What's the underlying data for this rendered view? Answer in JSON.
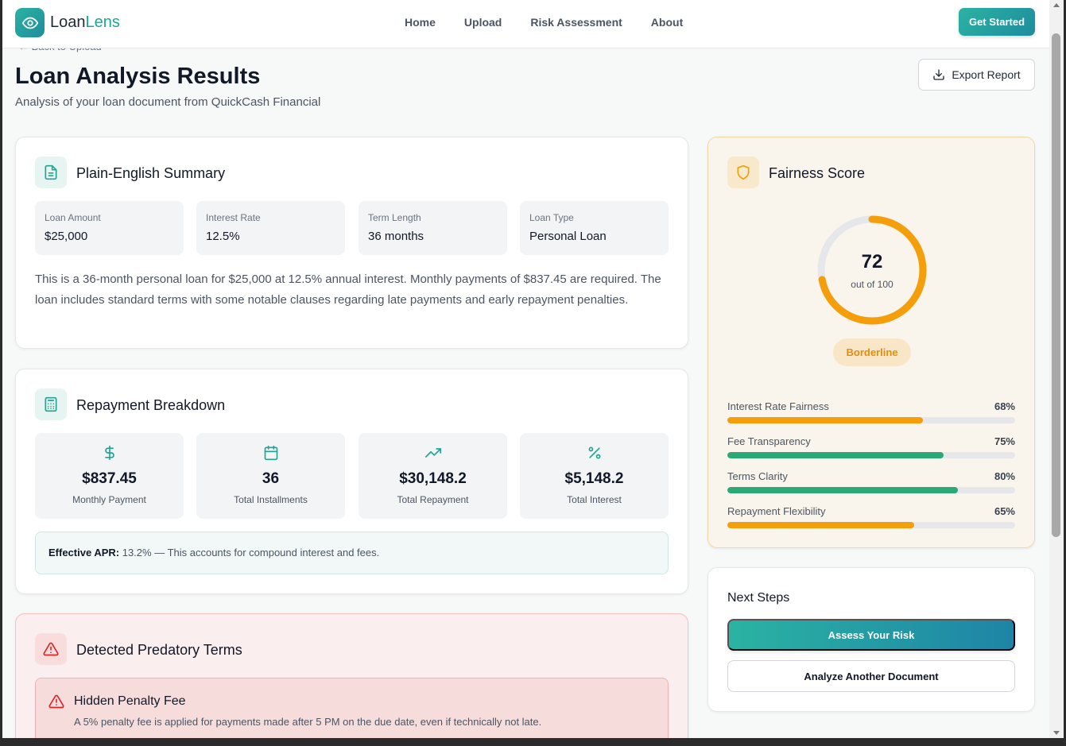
{
  "nav": {
    "logo_part1": "Loan",
    "logo_part2": "Lens",
    "links": [
      "Home",
      "Upload",
      "Risk Assessment",
      "About"
    ],
    "cta": "Get Started"
  },
  "page": {
    "back_link": "Back to Upload",
    "title": "Loan Analysis Results",
    "subtitle": "Analysis of your loan document from QuickCash Financial",
    "export_label": "Export Report"
  },
  "summary": {
    "title": "Plain-English Summary",
    "stats": [
      {
        "label": "Loan Amount",
        "value": "$25,000"
      },
      {
        "label": "Interest Rate",
        "value": "12.5%"
      },
      {
        "label": "Term Length",
        "value": "36 months"
      },
      {
        "label": "Loan Type",
        "value": "Personal Loan"
      }
    ],
    "text": "This is a 36-month personal loan for $25,000 at 12.5% annual interest. Monthly payments of $837.45 are required. The loan includes standard terms with some notable clauses regarding late payments and early repayment penalties."
  },
  "repayment": {
    "title": "Repayment Breakdown",
    "metrics": [
      {
        "value": "$837.45",
        "label": "Monthly Payment",
        "icon": "dollar-icon"
      },
      {
        "value": "36",
        "label": "Total Installments",
        "icon": "calendar-icon"
      },
      {
        "value": "$30,148.2",
        "label": "Total Repayment",
        "icon": "trending-up-icon"
      },
      {
        "value": "$5,148.2",
        "label": "Total Interest",
        "icon": "percent-icon"
      }
    ],
    "apr_label": "Effective APR:",
    "apr_text": " 13.2% — This accounts for compound interest and fees."
  },
  "predatory": {
    "title": "Detected Predatory Terms",
    "items": [
      {
        "title": "Hidden Penalty Fee",
        "description": "A 5% penalty fee is applied for payments made after 5 PM on the due date, even if technically not late."
      }
    ]
  },
  "fairness": {
    "title": "Fairness Score",
    "score": "72",
    "score_value": 72,
    "score_max": 100,
    "score_sub": "out of 100",
    "badge": "Borderline",
    "colors": {
      "warning": "#f59e0b",
      "good": "#2aa876",
      "track": "#e5e7eb"
    },
    "bars": [
      {
        "label": "Interest Rate Fairness",
        "pct": "68%",
        "value": 68,
        "color": "#f59e0b"
      },
      {
        "label": "Fee Transparency",
        "pct": "75%",
        "value": 75,
        "color": "#2aa876"
      },
      {
        "label": "Terms Clarity",
        "pct": "80%",
        "value": 80,
        "color": "#2aa876"
      },
      {
        "label": "Repayment Flexibility",
        "pct": "65%",
        "value": 65,
        "color": "#f59e0b"
      }
    ]
  },
  "next_steps": {
    "title": "Next Steps",
    "primary": "Assess Your Risk",
    "secondary": "Analyze Another Document"
  }
}
